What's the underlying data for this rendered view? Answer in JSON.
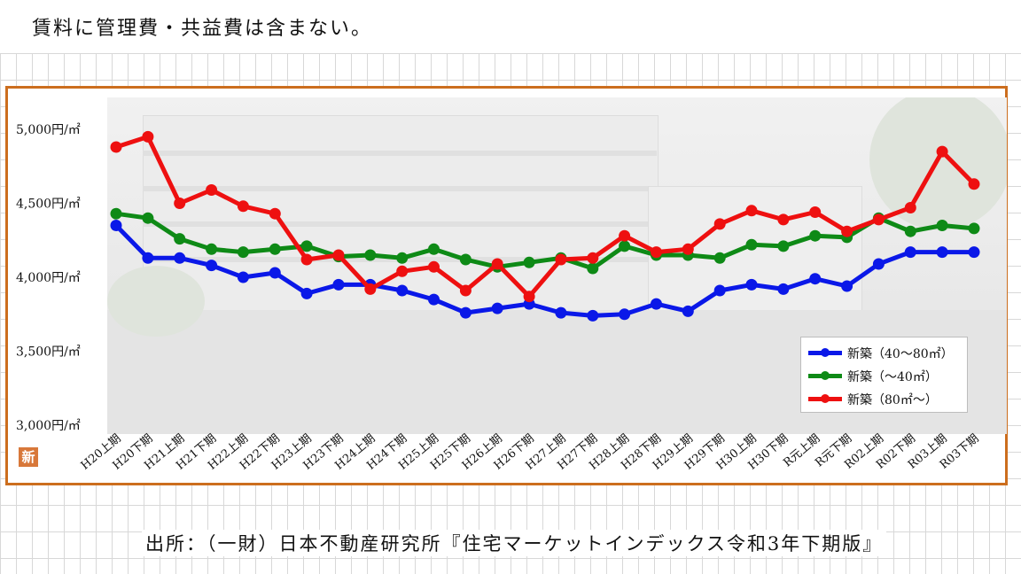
{
  "note": "賃料に管理費・共益費は含まない。",
  "source": "出所：（一財）日本不動産研究所『住宅マーケットインデックス令和3年下期版』",
  "badge": "新",
  "chart_data": {
    "type": "line",
    "ylim": [
      3000,
      5000
    ],
    "yticks": [
      {
        "value": 5000,
        "label": "5,000円/㎡"
      },
      {
        "value": 4500,
        "label": "4,500円/㎡"
      },
      {
        "value": 4000,
        "label": "4,000円/㎡"
      },
      {
        "value": 3500,
        "label": "3,500円/㎡"
      },
      {
        "value": 3000,
        "label": "3,000円/㎡"
      }
    ],
    "categories": [
      "H20上期",
      "H20下期",
      "H21上期",
      "H21下期",
      "H22上期",
      "H22下期",
      "H23上期",
      "H23下期",
      "H24上期",
      "H24下期",
      "H25上期",
      "H25下期",
      "H26上期",
      "H26下期",
      "H27上期",
      "H27下期",
      "H28上期",
      "H28下期",
      "H29上期",
      "H29下期",
      "H30上期",
      "H30下期",
      "R元上期",
      "R元下期",
      "R02上期",
      "R02下期",
      "R03上期",
      "R03下期"
    ],
    "series": [
      {
        "name": "新築（40〜80㎡）",
        "color": "#0a18e8",
        "values": [
          4350,
          4130,
          4130,
          4080,
          4000,
          4030,
          3890,
          3950,
          3950,
          3910,
          3850,
          3760,
          3790,
          3820,
          3760,
          3740,
          3750,
          3820,
          3770,
          3910,
          3950,
          3920,
          3990,
          3940,
          4090,
          4170,
          4170,
          4170
        ]
      },
      {
        "name": "新築（〜40㎡）",
        "color": "#0e8a16",
        "values": [
          4430,
          4400,
          4260,
          4190,
          4170,
          4190,
          4210,
          4140,
          4150,
          4130,
          4190,
          4120,
          4070,
          4100,
          4130,
          4060,
          4210,
          4150,
          4150,
          4130,
          4220,
          4210,
          4280,
          4270,
          4400,
          4310,
          4350,
          4330
        ]
      },
      {
        "name": "新築（80㎡〜）",
        "color": "#ee1010",
        "values": [
          4880,
          4950,
          4500,
          4590,
          4480,
          4430,
          4120,
          4150,
          3920,
          4040,
          4070,
          3910,
          4090,
          3870,
          4120,
          4130,
          4280,
          4170,
          4190,
          4360,
          4450,
          4390,
          4440,
          4310,
          4390,
          4470,
          4850,
          4630
        ]
      }
    ],
    "legend_position": "bottom-right",
    "grid": false
  }
}
